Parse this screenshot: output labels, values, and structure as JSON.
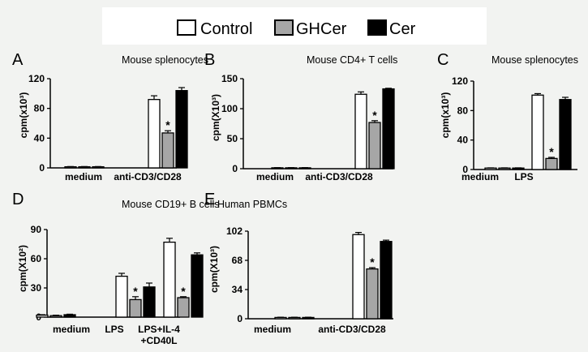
{
  "legend": [
    {
      "name": "Control",
      "color": "#ffffff"
    },
    {
      "name": "GHCer",
      "color": "#a6a6a6"
    },
    {
      "name": "Cer",
      "color": "#000000"
    }
  ],
  "chart_data": [
    {
      "panel": "A",
      "type": "bar",
      "title": "Mouse splenocytes",
      "ylabel": "cpm(x10³)",
      "ylim": [
        0,
        120
      ],
      "yticks": [
        0,
        40,
        80,
        120
      ],
      "categories": [
        "medium",
        "anti-CD3/CD28"
      ],
      "series": [
        {
          "name": "Control",
          "values": [
            1.5,
            92
          ],
          "errors": [
            0.3,
            5
          ]
        },
        {
          "name": "GHCer",
          "values": [
            1.5,
            47
          ],
          "errors": [
            0.3,
            3
          ]
        },
        {
          "name": "Cer",
          "values": [
            1.5,
            104
          ],
          "errors": [
            0.3,
            4
          ]
        }
      ],
      "annotations": [
        {
          "category": 1,
          "series": 1,
          "text": "*"
        }
      ]
    },
    {
      "panel": "B",
      "type": "bar",
      "title": "Mouse CD4+ T cells",
      "ylabel": "cpm(X10³)",
      "ylim": [
        0,
        150
      ],
      "yticks": [
        0,
        50,
        100,
        150
      ],
      "categories": [
        "medium",
        "anti-CD3/CD28"
      ],
      "series": [
        {
          "name": "Control",
          "values": [
            1.5,
            124
          ],
          "errors": [
            0.3,
            4
          ]
        },
        {
          "name": "GHCer",
          "values": [
            1.5,
            77
          ],
          "errors": [
            0.3,
            3
          ]
        },
        {
          "name": "Cer",
          "values": [
            1.5,
            133
          ],
          "errors": [
            0.3,
            1
          ]
        }
      ],
      "annotations": [
        {
          "category": 1,
          "series": 1,
          "text": "*"
        }
      ]
    },
    {
      "panel": "C",
      "type": "bar",
      "title": "Mouse splenocytes",
      "ylabel": "cpm(x10³)",
      "ylim": [
        0,
        120
      ],
      "yticks": [
        0,
        40,
        80,
        120
      ],
      "categories": [
        "medium",
        "LPS"
      ],
      "series": [
        {
          "name": "Control",
          "values": [
            2,
            101
          ],
          "errors": [
            0.3,
            2
          ]
        },
        {
          "name": "GHCer",
          "values": [
            2,
            15
          ],
          "errors": [
            0.3,
            1.5
          ]
        },
        {
          "name": "Cer",
          "values": [
            2,
            95
          ],
          "errors": [
            0.3,
            3
          ]
        }
      ],
      "annotations": [
        {
          "category": 1,
          "series": 1,
          "text": "*"
        }
      ]
    },
    {
      "panel": "D",
      "type": "bar",
      "title": "Mouse CD19+ B cells",
      "ylabel": "cpm(X10²)",
      "ylim": [
        0,
        90
      ],
      "yticks": [
        0,
        30,
        60,
        90
      ],
      "categories": [
        "medium",
        "LPS",
        "LPS+IL-4\n+CD40L"
      ],
      "series": [
        {
          "name": "Control",
          "values": [
            2,
            42,
            77
          ],
          "errors": [
            0.5,
            3,
            4
          ]
        },
        {
          "name": "GHCer",
          "values": [
            1.5,
            18,
            20
          ],
          "errors": [
            0.5,
            3,
            1
          ]
        },
        {
          "name": "Cer",
          "values": [
            2.5,
            31,
            64
          ],
          "errors": [
            0.5,
            4,
            2
          ]
        }
      ],
      "annotations": [
        {
          "category": 1,
          "series": 1,
          "text": "*"
        },
        {
          "category": 2,
          "series": 1,
          "text": "*"
        }
      ]
    },
    {
      "panel": "E",
      "type": "bar",
      "title": "Human PBMCs",
      "ylabel": "cpm(X10³)",
      "ylim": [
        0,
        102
      ],
      "yticks": [
        0,
        34,
        68,
        102
      ],
      "categories": [
        "medium",
        "anti-CD3/CD28"
      ],
      "series": [
        {
          "name": "Control",
          "values": [
            1.5,
            98
          ],
          "errors": [
            0.3,
            2.5
          ]
        },
        {
          "name": "GHCer",
          "values": [
            1.5,
            58
          ],
          "errors": [
            0.3,
            1.5
          ]
        },
        {
          "name": "Cer",
          "values": [
            1.5,
            90
          ],
          "errors": [
            0.3,
            1.5
          ]
        }
      ],
      "annotations": [
        {
          "category": 1,
          "series": 1,
          "text": "*"
        }
      ]
    }
  ]
}
